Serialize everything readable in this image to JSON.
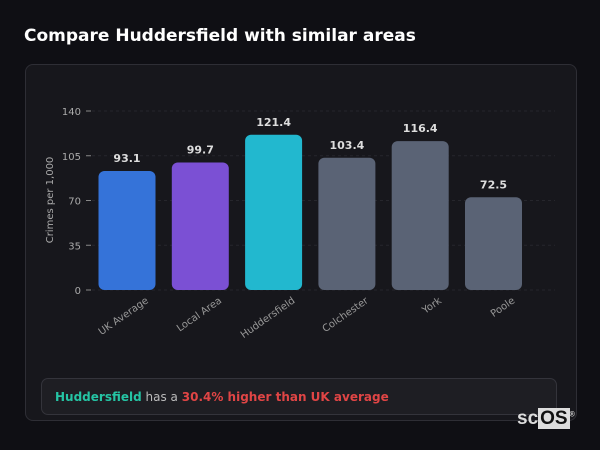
{
  "title": "Compare Huddersfield with similar areas",
  "chart_data": {
    "type": "bar",
    "title": "",
    "ylabel": "Crimes per 1,000",
    "xlabel": "",
    "ylim": [
      0,
      140
    ],
    "yticks": [
      0,
      35,
      70,
      105,
      140
    ],
    "categories": [
      "UK Average",
      "Local Area",
      "Huddersfield",
      "Colchester",
      "York",
      "Poole"
    ],
    "values": [
      93.1,
      99.7,
      121.4,
      103.4,
      116.4,
      72.5
    ],
    "colors": [
      "#3573d9",
      "#7b50d4",
      "#22b8cf",
      "#5a6375",
      "#5a6375",
      "#5a6375"
    ],
    "grid": true
  },
  "callout": {
    "area": "Huddersfield",
    "middle": "has a",
    "comparison": "30.4% higher than UK average"
  },
  "logo": {
    "text": "scOS"
  }
}
